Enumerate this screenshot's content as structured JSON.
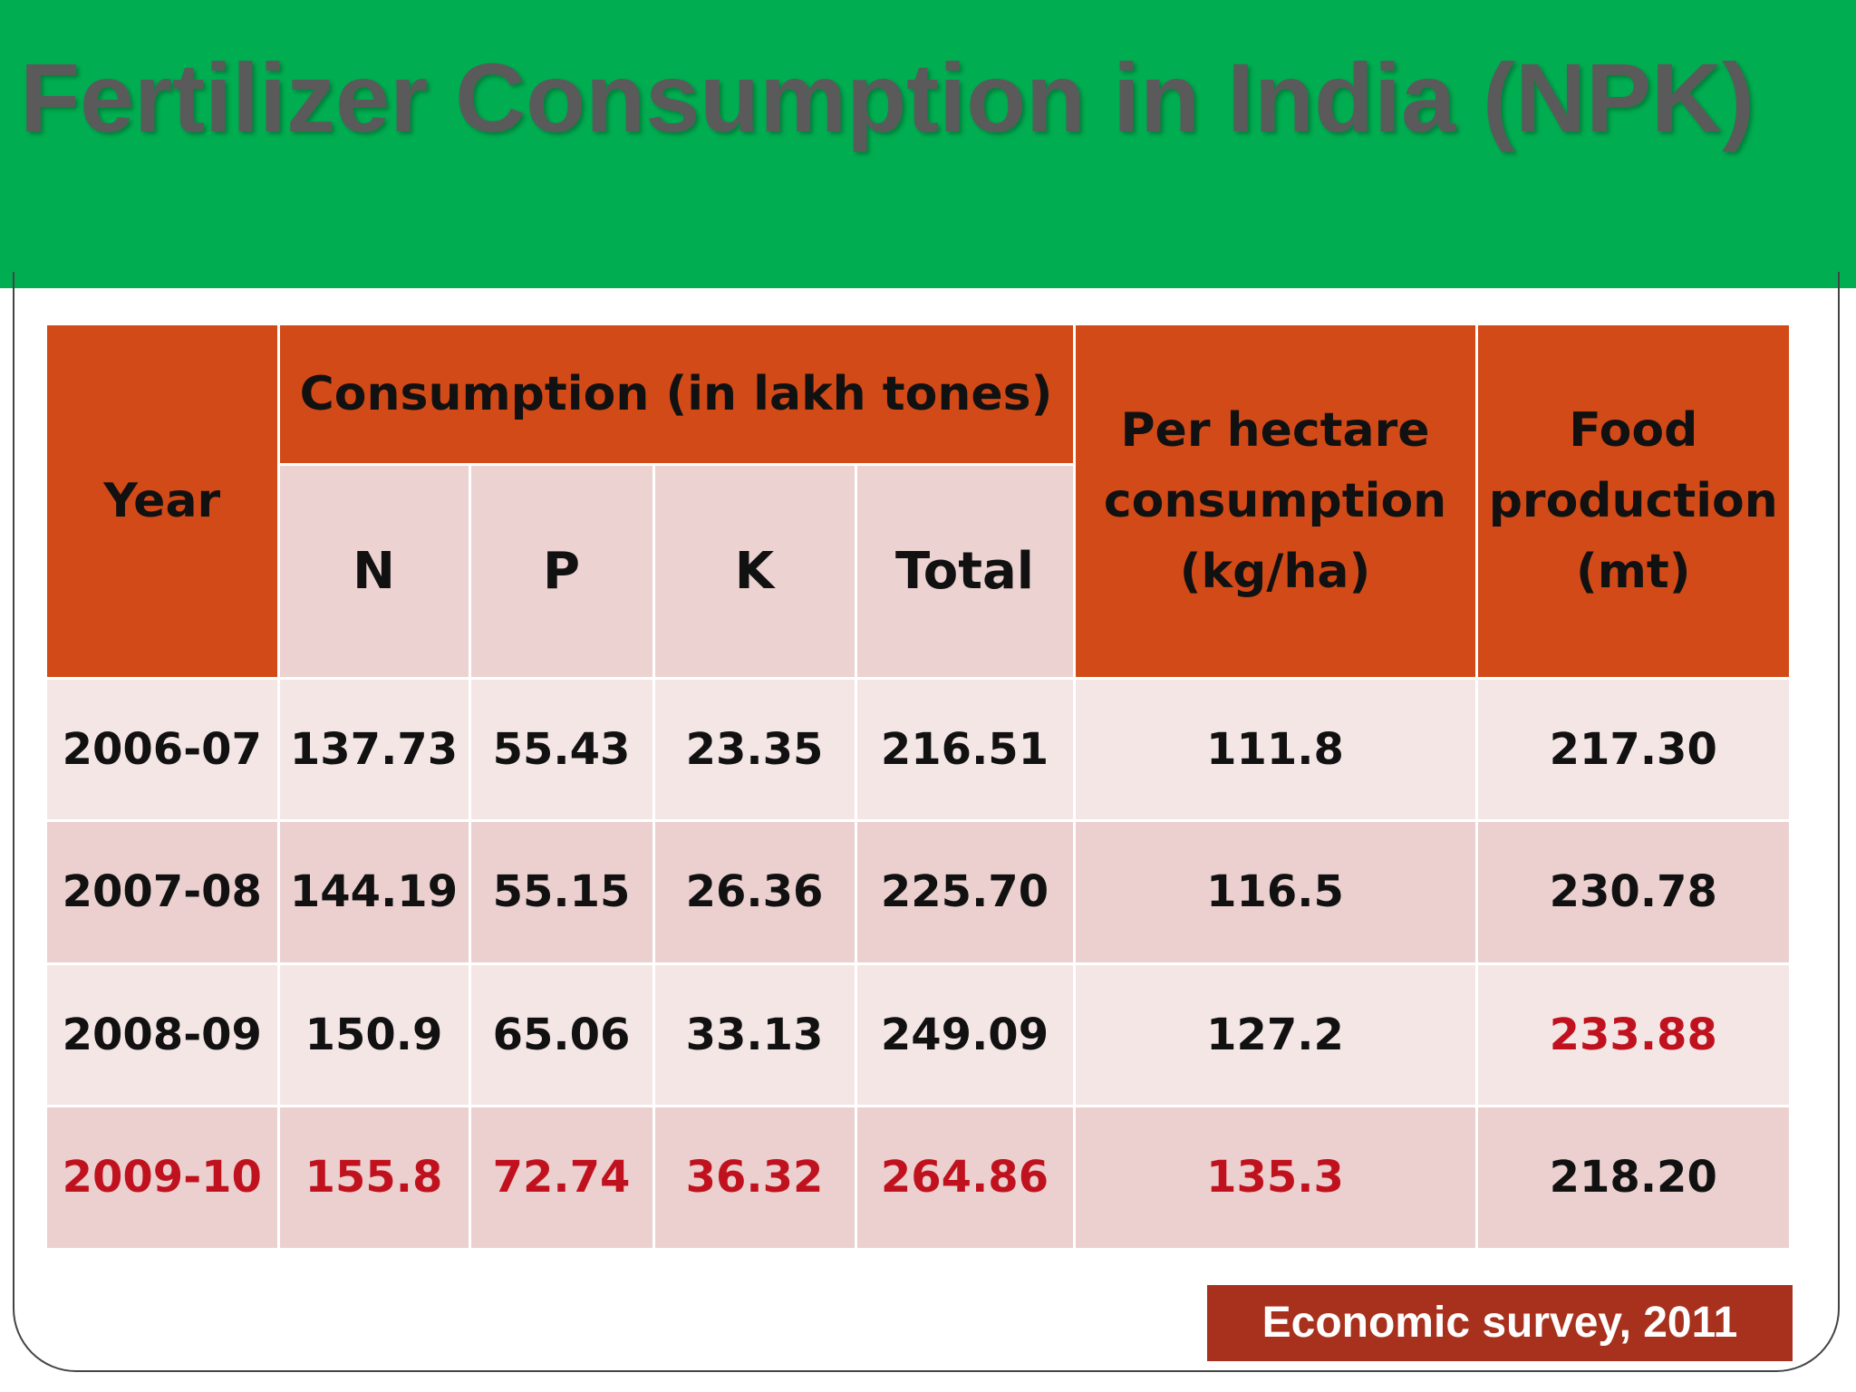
{
  "title": "Fertilizer Consumption in India (NPK)",
  "table": {
    "year_header": "Year",
    "consumption_header": "Consumption (in lakh tones)",
    "sub_headers": [
      "N",
      "P",
      "K",
      "Total"
    ],
    "per_hectare_header": "Per hectare consumption (kg/ha)",
    "food_header": "Food production (mt)",
    "rows": [
      {
        "year": "2006-07",
        "n": "137.73",
        "p": "55.43",
        "k": "23.35",
        "total": "216.51",
        "per_ha": "111.8",
        "food": "217.30"
      },
      {
        "year": "2007-08",
        "n": "144.19",
        "p": "55.15",
        "k": "26.36",
        "total": "225.70",
        "per_ha": "116.5",
        "food": "230.78"
      },
      {
        "year": "2008-09",
        "n": "150.9",
        "p": "65.06",
        "k": "33.13",
        "total": "249.09",
        "per_ha": "127.2",
        "food": "233.88"
      },
      {
        "year": "2009-10",
        "n": "155.8",
        "p": "72.74",
        "k": "36.32",
        "total": "264.86",
        "per_ha": "135.3",
        "food": "218.20"
      }
    ]
  },
  "source": "Economic survey, 2011",
  "colors": {
    "header_band": "#00ad50",
    "title_text": "#5a5a5a",
    "table_header": "#d24a17",
    "sub_header": "#ecd2d1",
    "row_light": "#f5e6e6",
    "row_dark": "#ecd0cf",
    "highlight_text": "#c0121e",
    "source_box": "#a8311d"
  }
}
